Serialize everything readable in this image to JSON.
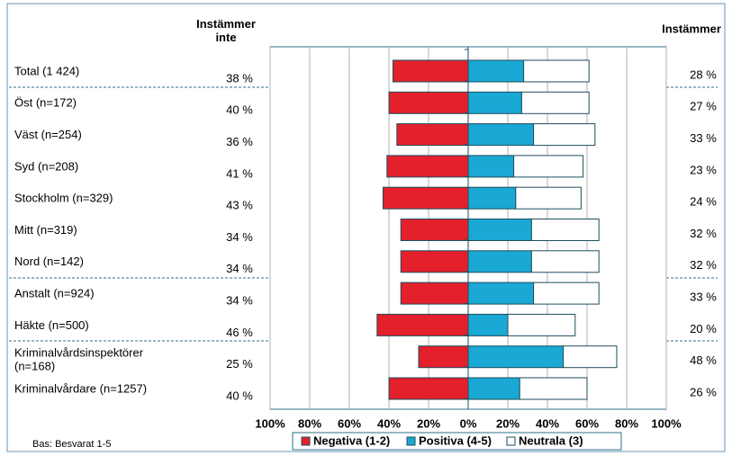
{
  "chart_data": {
    "type": "diverging-bar",
    "left_header": "Instämmer\ninte",
    "right_header": "Instämmer",
    "footnote": "Bas: Besvarat 1-5",
    "categories": [
      "Total (1 424)",
      "Öst (n=172)",
      "Väst (n=254)",
      "Syd (n=208)",
      "Stockholm (n=329)",
      "Mitt (n=319)",
      "Nord (n=142)",
      "Anstalt (n=924)",
      "Häkte (n=500)",
      "Kriminalvårdsinspektörer\n(n=168)",
      "Kriminalvårdare (n=1257)"
    ],
    "series": [
      {
        "name": "Negativa (1-2)",
        "color": "#e3202b",
        "values": [
          -38,
          -40,
          -36,
          -41,
          -43,
          -34,
          -34,
          -34,
          -46,
          -25,
          -40
        ],
        "value_labels": [
          "38 %",
          "40 %",
          "36 %",
          "41 %",
          "43 %",
          "34 %",
          "34 %",
          "34 %",
          "46 %",
          "25 %",
          "40 %"
        ]
      },
      {
        "name": "Positiva (4-5)",
        "color": "#1aa8d4",
        "values": [
          28,
          27,
          33,
          23,
          24,
          32,
          32,
          33,
          20,
          48,
          26
        ],
        "value_labels": [
          "28 %",
          "27 %",
          "33 %",
          "23 %",
          "24 %",
          "32 %",
          "32 %",
          "33 %",
          "20 %",
          "48 %",
          "26 %"
        ]
      },
      {
        "name": "Neutrala (3)",
        "color": "#ffffff",
        "values": [
          33,
          34,
          31,
          35,
          33,
          34,
          34,
          33,
          34,
          27,
          34
        ]
      }
    ],
    "xlim": [
      -100,
      100
    ],
    "xticks": [
      {
        "value": -100,
        "label": "100%"
      },
      {
        "value": -80,
        "label": "80%"
      },
      {
        "value": -60,
        "label": "60%"
      },
      {
        "value": -40,
        "label": "40%"
      },
      {
        "value": -20,
        "label": "20%"
      },
      {
        "value": 0,
        "label": "0%"
      },
      {
        "value": 20,
        "label": "20%"
      },
      {
        "value": 40,
        "label": "40%"
      },
      {
        "value": 60,
        "label": "60%"
      },
      {
        "value": 80,
        "label": "80%"
      },
      {
        "value": 100,
        "label": "100%"
      }
    ],
    "grid": true
  }
}
